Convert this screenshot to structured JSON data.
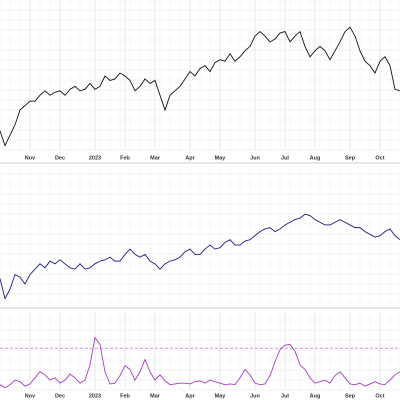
{
  "chart_data": [
    {
      "type": "line",
      "xlim": [
        0,
        80
      ],
      "ylim": [
        0,
        100
      ],
      "grid": true,
      "xticks": [
        {
          "value": 6,
          "label": "Nov"
        },
        {
          "value": 12,
          "label": "Dec"
        },
        {
          "value": 19,
          "label": "2023"
        },
        {
          "value": 25,
          "label": "Feb"
        },
        {
          "value": 31,
          "label": "Mar"
        },
        {
          "value": 38,
          "label": "Apr"
        },
        {
          "value": 44,
          "label": "May"
        },
        {
          "value": 51,
          "label": "Jun"
        },
        {
          "value": 57,
          "label": "Jul"
        },
        {
          "value": 63,
          "label": "Aug"
        },
        {
          "value": 70,
          "label": "Sep"
        },
        {
          "value": 76,
          "label": "Oct"
        }
      ],
      "series": [
        {
          "color": "#111111",
          "values": [
            13,
            3,
            10,
            17,
            27,
            30,
            33,
            33,
            37,
            40,
            37,
            39,
            40,
            37,
            41,
            43,
            40,
            41,
            45,
            41,
            43,
            50,
            47,
            48,
            52,
            50,
            47,
            40,
            43,
            48,
            45,
            47,
            37,
            27,
            37,
            40,
            43,
            48,
            53,
            50,
            55,
            57,
            53,
            59,
            61,
            60,
            65,
            60,
            63,
            67,
            70,
            77,
            80,
            77,
            73,
            75,
            79,
            80,
            73,
            77,
            80,
            70,
            63,
            67,
            70,
            67,
            61,
            67,
            73,
            80,
            83,
            77,
            67,
            60,
            57,
            52,
            60,
            63,
            57,
            41,
            40
          ]
        }
      ]
    },
    {
      "type": "line",
      "xlim": [
        0,
        80
      ],
      "ylim": [
        0,
        100
      ],
      "grid": true,
      "series": [
        {
          "color": "#1f1f7a",
          "values": [
            19,
            4,
            11,
            22,
            20,
            15,
            22,
            26,
            30,
            27,
            32,
            30,
            33,
            30,
            27,
            26,
            30,
            26,
            27,
            30,
            32,
            33,
            35,
            32,
            32,
            37,
            41,
            37,
            35,
            37,
            32,
            30,
            26,
            30,
            32,
            33,
            35,
            39,
            41,
            37,
            37,
            41,
            44,
            41,
            42,
            46,
            48,
            44,
            44,
            47,
            48,
            51,
            54,
            56,
            57,
            54,
            56,
            59,
            61,
            63,
            64,
            67,
            66,
            63,
            61,
            59,
            59,
            61,
            63,
            61,
            59,
            57,
            57,
            54,
            52,
            50,
            51,
            54,
            56,
            51,
            48
          ]
        }
      ]
    },
    {
      "type": "line",
      "xlim": [
        0,
        80
      ],
      "ylim": [
        0,
        100
      ],
      "grid": true,
      "ref_line": 55,
      "ref_color": "#b060d0",
      "xticks": [
        {
          "value": 6,
          "label": "Nov"
        },
        {
          "value": 12,
          "label": "Dec"
        },
        {
          "value": 19,
          "label": "2023"
        },
        {
          "value": 25,
          "label": "Feb"
        },
        {
          "value": 31,
          "label": "Mar"
        },
        {
          "value": 38,
          "label": "Apr"
        },
        {
          "value": 44,
          "label": "May"
        },
        {
          "value": 51,
          "label": "Jun"
        },
        {
          "value": 57,
          "label": "Jul"
        },
        {
          "value": 63,
          "label": "Aug"
        },
        {
          "value": 70,
          "label": "Sep"
        },
        {
          "value": 76,
          "label": "Oct"
        }
      ],
      "series": [
        {
          "color": "#a040c0",
          "values": [
            7,
            3,
            7,
            13,
            11,
            5,
            8,
            16,
            24,
            20,
            13,
            16,
            9,
            13,
            21,
            16,
            9,
            13,
            33,
            69,
            60,
            24,
            8,
            9,
            19,
            32,
            27,
            13,
            24,
            40,
            24,
            13,
            20,
            12,
            7,
            8,
            9,
            9,
            8,
            11,
            12,
            9,
            13,
            11,
            9,
            7,
            8,
            7,
            16,
            27,
            20,
            9,
            7,
            8,
            19,
            37,
            53,
            59,
            60,
            51,
            33,
            27,
            16,
            9,
            11,
            13,
            9,
            19,
            24,
            16,
            8,
            7,
            9,
            5,
            8,
            11,
            8,
            7,
            13,
            20,
            24
          ]
        }
      ]
    }
  ]
}
